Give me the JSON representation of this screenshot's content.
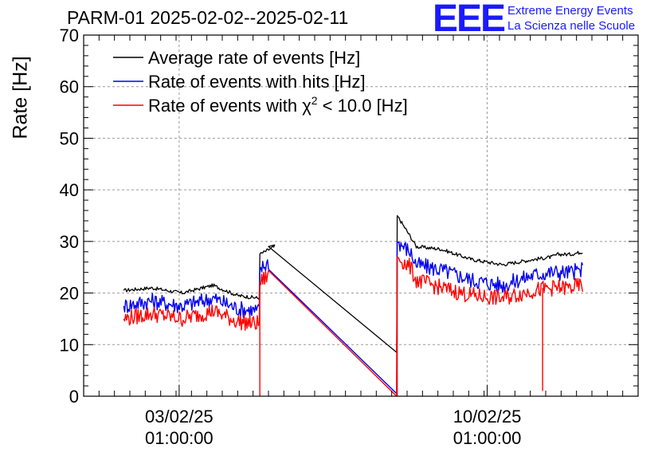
{
  "title": "PARM-01 2025-02-02--2025-02-11",
  "logo": {
    "mark": "EEE",
    "line1": "Extreme Energy Events",
    "line2": "La Scienza nelle Scuole",
    "color": "#1a1aff"
  },
  "chart_data": {
    "type": "line",
    "title": "PARM-01 2025-02-02--2025-02-11",
    "xlabel": "",
    "ylabel": "Rate [Hz]",
    "ylim": [
      0,
      70
    ],
    "xlim_days": [
      0,
      9.0
    ],
    "yticks": [
      0,
      10,
      20,
      30,
      40,
      50,
      60,
      70
    ],
    "xticks": [
      {
        "day": 1.55,
        "label_date": "03/02/25",
        "label_time": "01:00:00"
      },
      {
        "day": 6.55,
        "label_date": "10/02/25",
        "label_time": "01:00:00"
      }
    ],
    "grid": true,
    "legend_position": "top-left",
    "series": [
      {
        "name": "Average rate of events [Hz]",
        "color": "#000000",
        "x": [
          0.65,
          1.1,
          1.6,
          2.1,
          2.4,
          2.5,
          2.85,
          2.86,
          3.1,
          3.0,
          5.08,
          5.09,
          5.3,
          5.4,
          5.8,
          6.3,
          6.8,
          7.3,
          7.6,
          7.7,
          7.9,
          8.1
        ],
        "values": [
          20.5,
          21.0,
          20.0,
          21.5,
          20.0,
          19.5,
          19.0,
          27.5,
          29.0,
          29.0,
          8.5,
          35.0,
          31.0,
          29.0,
          28.5,
          26.5,
          25.5,
          26.5,
          27.0,
          27.5,
          27.5,
          28.0
        ]
      },
      {
        "name": "Rate of events with hits [Hz]",
        "color": "#0000ee",
        "x": [
          0.65,
          1.1,
          1.6,
          2.1,
          2.4,
          2.5,
          2.85,
          2.86,
          3.0,
          5.08,
          5.09,
          5.3,
          5.4,
          5.8,
          6.3,
          6.8,
          7.3,
          7.6,
          7.7,
          7.9,
          8.1
        ],
        "values": [
          17.5,
          18.5,
          17.5,
          19.0,
          17.5,
          17.0,
          16.5,
          24.5,
          26.0,
          0.5,
          30.0,
          28.0,
          25.5,
          24.5,
          22.5,
          21.5,
          23.5,
          24.0,
          24.0,
          24.0,
          24.5
        ]
      },
      {
        "name": "Rate of events with χ² < 10.0 [Hz]",
        "color": "#ff0000",
        "x": [
          0.65,
          1.1,
          1.6,
          2.1,
          2.4,
          2.5,
          2.85,
          2.86,
          3.0,
          5.08,
          5.09,
          5.3,
          5.4,
          5.8,
          6.3,
          6.8,
          7.3,
          7.6,
          7.7,
          7.9,
          8.1
        ],
        "values": [
          15.0,
          16.0,
          15.0,
          16.5,
          15.0,
          14.5,
          14.0,
          22.0,
          23.5,
          0.0,
          27.0,
          25.0,
          22.5,
          21.0,
          19.5,
          19.0,
          20.5,
          21.0,
          21.0,
          21.0,
          21.5
        ]
      }
    ],
    "legend": [
      {
        "text": "Average rate of events [Hz]",
        "color": "#000000"
      },
      {
        "text": "Rate of events with hits [Hz]",
        "color": "#0000ee"
      },
      {
        "text_main": "Rate of events with χ",
        "text_sup": "2",
        "text_tail": " < 10.0 [Hz]",
        "color": "#ff0000"
      }
    ]
  }
}
